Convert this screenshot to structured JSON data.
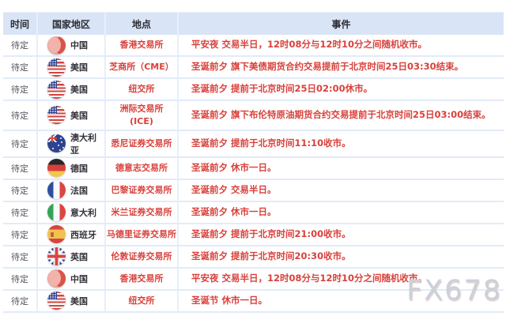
{
  "header": {
    "columns": [
      "时间",
      "国家地区",
      "地点",
      "事件"
    ]
  },
  "rows": [
    {
      "time": "待定",
      "country": "中国",
      "flag": "cn",
      "flag_icon": "flag-china-icon",
      "location": "香港交易所",
      "event": "平安夜 交易半日，12时08分与12时10分之间随机收市。"
    },
    {
      "time": "待定",
      "country": "美国",
      "flag": "us",
      "flag_icon": "flag-usa-icon",
      "location": "芝商所（CME）",
      "event": "圣诞前夕 旗下美债期货合约交易提前于北京时间25日03:30结束。"
    },
    {
      "time": "待定",
      "country": "美国",
      "flag": "us",
      "flag_icon": "flag-usa-icon",
      "location": "纽交所",
      "event": "圣诞前夕 提前于北京时间25日02:00休市。"
    },
    {
      "time": "待定",
      "country": "美国",
      "flag": "us",
      "flag_icon": "flag-usa-icon",
      "location": "洲际交易所\n(ICE)",
      "event": "圣诞前夕 旗下布伦特原油期货合约交易提前于北京时间25日03:00结束。"
    },
    {
      "time": "待定",
      "country": "澳大利亚",
      "flag": "au",
      "flag_icon": "flag-australia-icon",
      "location": "悉尼证券交易所",
      "event": "圣诞前夕 提前于北京时间11:10收市。"
    },
    {
      "time": "待定",
      "country": "德国",
      "flag": "de",
      "flag_icon": "flag-germany-icon",
      "location": "德意志交易所",
      "event": "圣诞前夕 休市一日。"
    },
    {
      "time": "待定",
      "country": "法国",
      "flag": "fr",
      "flag_icon": "flag-france-icon",
      "location": "巴黎证券交易所",
      "event": "圣诞前夕 交易半日。"
    },
    {
      "time": "待定",
      "country": "意大利",
      "flag": "it",
      "flag_icon": "flag-italy-icon",
      "location": "米兰证券交易所",
      "event": "圣诞前夕 休市一日。"
    },
    {
      "time": "待定",
      "country": "西班牙",
      "flag": "es",
      "flag_icon": "flag-spain-icon",
      "location": "马德里证券交易所",
      "event": "圣诞前夕 提前于北京时间21:00收市。"
    },
    {
      "time": "待定",
      "country": "英国",
      "flag": "gb",
      "flag_icon": "flag-uk-icon",
      "location": "伦敦证券交易所",
      "event": "圣诞前夕 提前于北京时间20:30收市。"
    },
    {
      "time": "待定",
      "country": "中国",
      "flag": "cn",
      "flag_icon": "flag-china-icon",
      "location": "香港交易所",
      "event": "平安夜 交易半日，12时08分与12时10分之间随机收市。"
    },
    {
      "time": "待定",
      "country": "美国",
      "flag": "us",
      "flag_icon": "flag-usa-icon",
      "location": "纽交所",
      "event": "圣诞节 休市一日。"
    }
  ],
  "watermark": "FX678",
  "colors": {
    "accent_red": "#d9413c",
    "header_bg": "#d9e5f6",
    "divider": "#e7effb"
  }
}
